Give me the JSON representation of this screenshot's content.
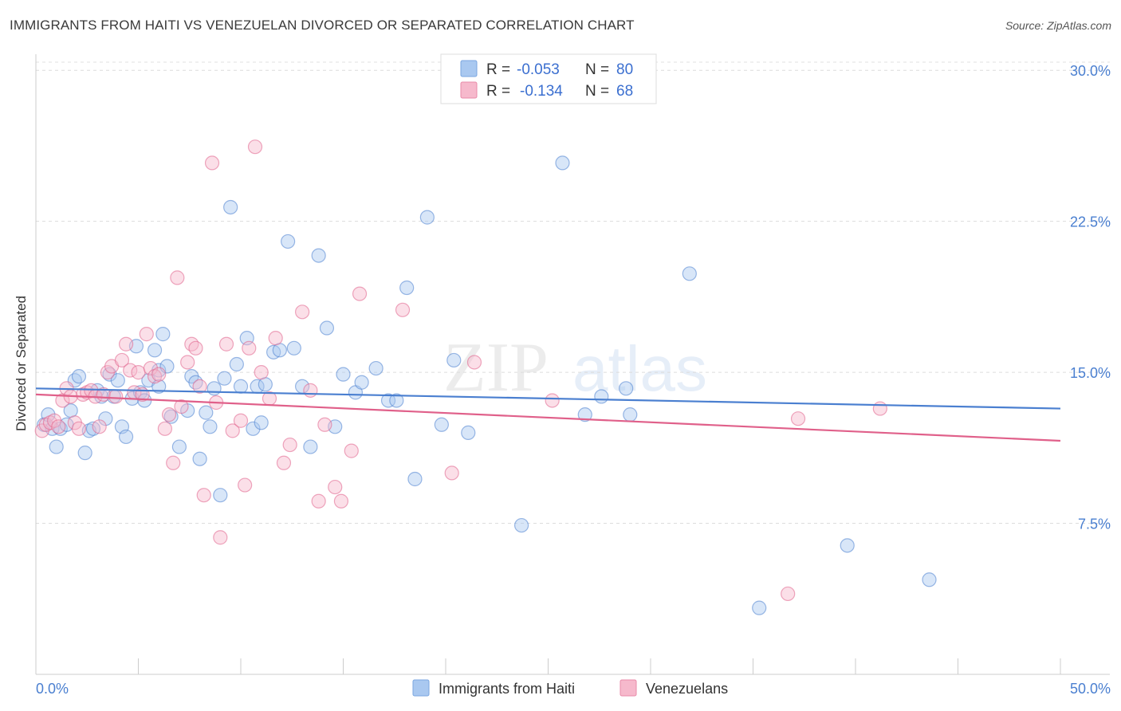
{
  "header": {
    "title": "IMMIGRANTS FROM HAITI VS VENEZUELAN DIVORCED OR SEPARATED CORRELATION CHART",
    "source": "Source: ZipAtlas.com"
  },
  "watermark": {
    "part1": "ZIP",
    "part2": "atlas"
  },
  "legend": {
    "rows": [
      {
        "r_label": "R =",
        "r_value": "-0.053",
        "n_label": "N =",
        "n_value": "80",
        "color": "#a9c8f0"
      },
      {
        "r_label": "R =",
        "r_value": "-0.134",
        "n_label": "N =",
        "n_value": "68",
        "color": "#f6b9cc"
      }
    ]
  },
  "bottom_legend": [
    {
      "label": "Immigrants from Haiti",
      "color": "#a9c8f0"
    },
    {
      "label": "Venezuelans",
      "color": "#f6b9cc"
    }
  ],
  "chart_data": {
    "type": "scatter",
    "title": "IMMIGRANTS FROM HAITI VS VENEZUELAN DIVORCED OR SEPARATED CORRELATION CHART",
    "xlabel": "",
    "ylabel": "Divorced or Separated",
    "xlim": [
      0,
      50
    ],
    "ylim": [
      0,
      30.8
    ],
    "x_tick_labels": [
      "0.0%",
      "50.0%"
    ],
    "y_ticks": [
      7.5,
      15.0,
      22.5,
      30.0
    ],
    "y_tick_labels": [
      "7.5%",
      "15.0%",
      "22.5%",
      "30.0%"
    ],
    "grid": true,
    "legend_position": "top-center",
    "series": [
      {
        "name": "Immigrants from Haiti",
        "color": "#4a7fd0",
        "fill": "#a9c8f0",
        "trend": {
          "x": [
            0,
            50
          ],
          "y": [
            14.2,
            13.2
          ]
        },
        "points": [
          [
            0.4,
            12.4
          ],
          [
            0.6,
            12.9
          ],
          [
            0.8,
            12.2
          ],
          [
            1.0,
            11.3
          ],
          [
            1.2,
            12.2
          ],
          [
            1.5,
            12.4
          ],
          [
            1.7,
            13.1
          ],
          [
            1.9,
            14.6
          ],
          [
            2.1,
            14.8
          ],
          [
            2.4,
            11.0
          ],
          [
            2.6,
            12.1
          ],
          [
            2.8,
            12.2
          ],
          [
            3.0,
            14.1
          ],
          [
            3.2,
            13.8
          ],
          [
            3.4,
            12.7
          ],
          [
            3.6,
            14.9
          ],
          [
            3.8,
            13.8
          ],
          [
            4.0,
            14.6
          ],
          [
            4.2,
            12.3
          ],
          [
            4.4,
            11.8
          ],
          [
            4.7,
            13.7
          ],
          [
            4.9,
            16.3
          ],
          [
            5.1,
            14.0
          ],
          [
            5.3,
            13.6
          ],
          [
            5.5,
            14.6
          ],
          [
            5.8,
            16.1
          ],
          [
            6.0,
            15.1
          ],
          [
            6.2,
            16.9
          ],
          [
            6.4,
            15.3
          ],
          [
            6.6,
            12.8
          ],
          [
            7.0,
            11.3
          ],
          [
            7.4,
            13.1
          ],
          [
            7.6,
            14.8
          ],
          [
            7.8,
            14.5
          ],
          [
            8.0,
            10.7
          ],
          [
            8.3,
            13.0
          ],
          [
            8.5,
            12.3
          ],
          [
            8.7,
            14.2
          ],
          [
            9.0,
            8.9
          ],
          [
            9.2,
            14.7
          ],
          [
            9.5,
            23.2
          ],
          [
            9.8,
            15.4
          ],
          [
            10.0,
            14.3
          ],
          [
            10.3,
            16.7
          ],
          [
            10.6,
            12.2
          ],
          [
            10.8,
            14.3
          ],
          [
            11.2,
            14.4
          ],
          [
            11.6,
            16.0
          ],
          [
            11.9,
            16.1
          ],
          [
            12.3,
            21.5
          ],
          [
            12.6,
            16.2
          ],
          [
            13.0,
            14.3
          ],
          [
            13.4,
            11.3
          ],
          [
            13.8,
            20.8
          ],
          [
            14.2,
            17.2
          ],
          [
            14.6,
            12.3
          ],
          [
            15.0,
            14.9
          ],
          [
            15.6,
            14.0
          ],
          [
            15.9,
            14.5
          ],
          [
            16.6,
            15.2
          ],
          [
            17.2,
            13.6
          ],
          [
            17.6,
            13.6
          ],
          [
            18.1,
            19.2
          ],
          [
            18.5,
            9.7
          ],
          [
            19.1,
            22.7
          ],
          [
            19.8,
            12.4
          ],
          [
            20.4,
            15.6
          ],
          [
            21.1,
            12.0
          ],
          [
            23.7,
            7.4
          ],
          [
            25.7,
            25.4
          ],
          [
            26.8,
            12.9
          ],
          [
            27.6,
            13.8
          ],
          [
            28.8,
            14.2
          ],
          [
            29.0,
            12.9
          ],
          [
            31.9,
            19.9
          ],
          [
            35.3,
            3.3
          ],
          [
            39.6,
            6.4
          ],
          [
            43.6,
            4.7
          ],
          [
            11.0,
            12.5
          ],
          [
            6.0,
            14.3
          ]
        ]
      },
      {
        "name": "Venezuelans",
        "color": "#e0608a",
        "fill": "#f6b9cc",
        "trend": {
          "x": [
            0,
            50
          ],
          "y": [
            13.9,
            11.6
          ]
        },
        "points": [
          [
            0.3,
            12.1
          ],
          [
            0.5,
            12.4
          ],
          [
            0.7,
            12.5
          ],
          [
            0.9,
            12.6
          ],
          [
            1.1,
            12.3
          ],
          [
            1.3,
            13.6
          ],
          [
            1.5,
            14.2
          ],
          [
            1.7,
            13.8
          ],
          [
            1.9,
            12.5
          ],
          [
            2.1,
            12.2
          ],
          [
            2.3,
            13.9
          ],
          [
            2.5,
            14.0
          ],
          [
            2.7,
            14.1
          ],
          [
            2.9,
            13.8
          ],
          [
            3.1,
            12.3
          ],
          [
            3.3,
            13.9
          ],
          [
            3.5,
            15.0
          ],
          [
            3.7,
            15.3
          ],
          [
            3.9,
            13.8
          ],
          [
            4.2,
            15.6
          ],
          [
            4.4,
            16.4
          ],
          [
            4.6,
            15.1
          ],
          [
            4.8,
            14.0
          ],
          [
            5.0,
            15.0
          ],
          [
            5.2,
            13.9
          ],
          [
            5.4,
            16.9
          ],
          [
            5.6,
            15.2
          ],
          [
            5.8,
            14.8
          ],
          [
            6.0,
            14.9
          ],
          [
            6.3,
            12.2
          ],
          [
            6.5,
            12.9
          ],
          [
            6.7,
            10.5
          ],
          [
            6.9,
            19.7
          ],
          [
            7.1,
            13.3
          ],
          [
            7.4,
            15.5
          ],
          [
            7.6,
            16.4
          ],
          [
            7.8,
            16.2
          ],
          [
            8.0,
            14.3
          ],
          [
            8.2,
            8.9
          ],
          [
            8.6,
            25.4
          ],
          [
            8.8,
            13.5
          ],
          [
            9.0,
            6.8
          ],
          [
            9.3,
            16.4
          ],
          [
            9.6,
            12.1
          ],
          [
            10.0,
            12.6
          ],
          [
            10.2,
            9.4
          ],
          [
            10.4,
            16.2
          ],
          [
            10.7,
            26.2
          ],
          [
            11.0,
            15.0
          ],
          [
            11.4,
            13.7
          ],
          [
            11.7,
            16.7
          ],
          [
            12.1,
            10.5
          ],
          [
            12.4,
            11.4
          ],
          [
            13.0,
            18.0
          ],
          [
            13.4,
            14.1
          ],
          [
            13.8,
            8.6
          ],
          [
            14.1,
            12.4
          ],
          [
            14.6,
            9.3
          ],
          [
            14.9,
            8.6
          ],
          [
            15.4,
            11.1
          ],
          [
            15.8,
            18.9
          ],
          [
            17.9,
            18.1
          ],
          [
            20.3,
            10.0
          ],
          [
            21.4,
            15.5
          ],
          [
            25.2,
            13.6
          ],
          [
            36.7,
            4.0
          ],
          [
            37.2,
            12.7
          ],
          [
            41.2,
            13.2
          ]
        ]
      }
    ]
  }
}
